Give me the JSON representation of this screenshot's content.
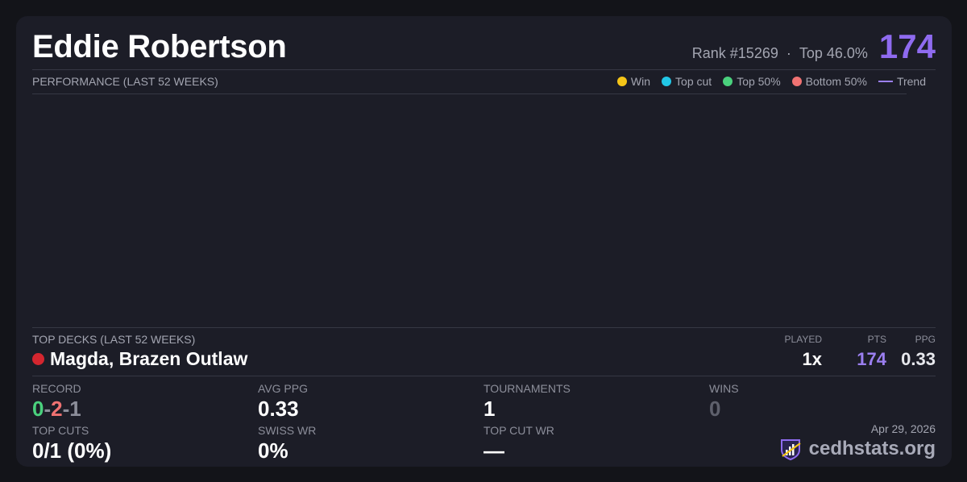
{
  "player": {
    "name": "Eddie Robertson",
    "rank": "Rank #15269",
    "separator": "·",
    "top_pct": "Top 46.0%",
    "score": "174"
  },
  "performance": {
    "title": "PERFORMANCE (LAST 52 WEEKS)",
    "legend": [
      {
        "label": "Win",
        "color": "#f5c518"
      },
      {
        "label": "Top cut",
        "color": "#22c7e6"
      },
      {
        "label": "Top 50%",
        "color": "#4ad17d"
      },
      {
        "label": "Bottom 50%",
        "color": "#f07272"
      },
      {
        "label": "Trend",
        "color": "#9b7ff0"
      }
    ]
  },
  "top_decks": {
    "title": "TOP DECKS (LAST 52 WEEKS)",
    "columns": {
      "played": "PLAYED",
      "pts": "PTS",
      "ppg": "PPG"
    },
    "rows": [
      {
        "name": "Magda, Brazen Outlaw",
        "color": "#d4262f",
        "played": "1x",
        "pts": "174",
        "ppg": "0.33"
      }
    ]
  },
  "stats": {
    "record_label": "RECORD",
    "record": {
      "wins": "0",
      "losses": "2",
      "draws": "1",
      "sep": "-"
    },
    "avg_ppg_label": "AVG PPG",
    "avg_ppg": "0.33",
    "tournaments_label": "TOURNAMENTS",
    "tournaments": "1",
    "wins_label": "WINS",
    "wins": "0",
    "top_cuts_label": "TOP CUTS",
    "top_cuts": "0/1 (0%)",
    "swiss_wr_label": "SWISS WR",
    "swiss_wr": "0%",
    "top_cut_wr_label": "TOP CUT WR",
    "top_cut_wr": "—"
  },
  "footer": {
    "date": "Apr 29, 2026",
    "brand": "cedhstats.org"
  }
}
